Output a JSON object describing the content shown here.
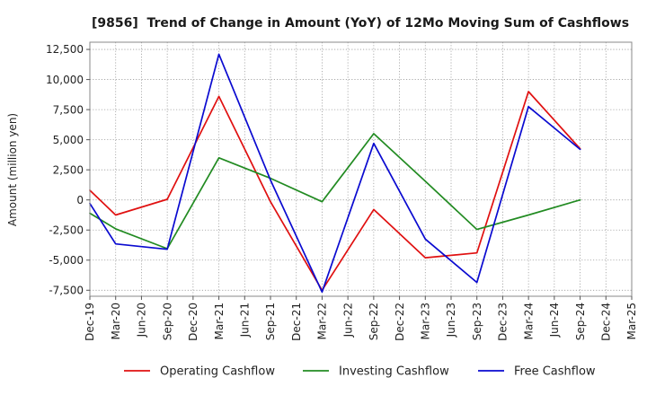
{
  "chart_data": {
    "type": "line",
    "title": "[9856]  Trend of Change in Amount (YoY) of 12Mo Moving Sum of Cashflows",
    "xlabel": "",
    "ylabel": "Amount (million yen)",
    "x_tick_labels": [
      "Dec-19",
      "Mar-20",
      "Jun-20",
      "Sep-20",
      "Dec-20",
      "Mar-21",
      "Jun-21",
      "Sep-21",
      "Dec-21",
      "Mar-22",
      "Jun-22",
      "Sep-22",
      "Dec-22",
      "Mar-23",
      "Jun-23",
      "Sep-23",
      "Dec-23",
      "Mar-24",
      "Jun-24",
      "Sep-24",
      "Dec-24",
      "Mar-25"
    ],
    "y_ticks": [
      12500,
      10000,
      7500,
      5000,
      2500,
      0,
      -2500,
      -5000,
      -7500
    ],
    "y_tick_labels": [
      "12,500",
      "10,000",
      "7,500",
      "5,000",
      "2,500",
      "0",
      "-2,500",
      "-5,000",
      "-7,500"
    ],
    "ylim": [
      -8000,
      13100
    ],
    "grid": true,
    "legend_position": "bottom",
    "x": [
      "Dec-19",
      "Mar-20",
      "Sep-20",
      "Mar-21",
      "Sep-21",
      "Mar-22",
      "Sep-22",
      "Mar-23",
      "Sep-23",
      "Mar-24",
      "Sep-24"
    ],
    "series": [
      {
        "name": "Operating Cashflow",
        "color": "#e01010",
        "values": [
          800,
          -1250,
          50,
          8600,
          -150,
          -7500,
          -800,
          -4800,
          -4400,
          9000,
          4250
        ]
      },
      {
        "name": "Investing Cashflow",
        "color": "#228b22",
        "values": [
          -1100,
          -2400,
          -4050,
          3500,
          1800,
          -150,
          5500,
          1550,
          -2450,
          -1250,
          0
        ]
      },
      {
        "name": "Free Cashflow",
        "color": "#0a0ad0",
        "values": [
          -300,
          -3650,
          -4100,
          12100,
          1650,
          -7650,
          4700,
          -3250,
          -6850,
          7750,
          4200
        ]
      }
    ]
  }
}
